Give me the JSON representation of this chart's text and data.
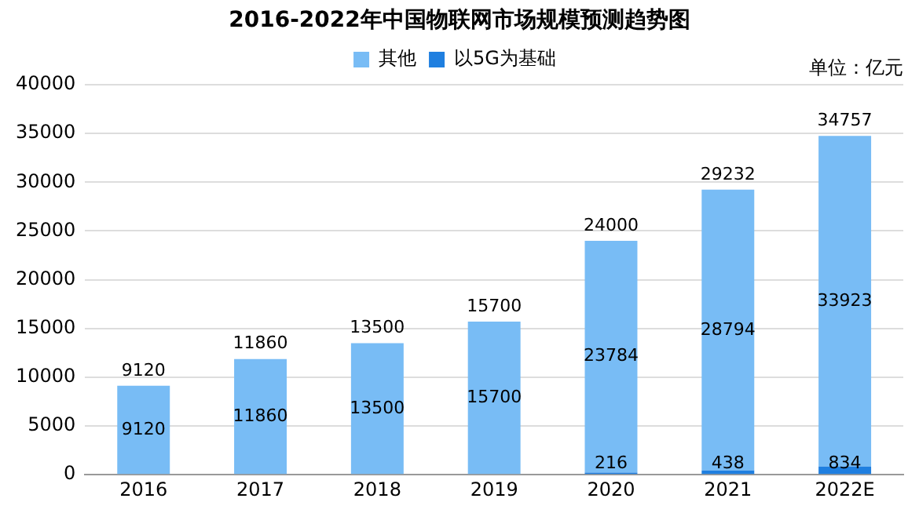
{
  "chart_data": {
    "type": "bar",
    "title": "2016-2022年中国物联网市场规模预测趋势图",
    "categories": [
      "2016",
      "2017",
      "2018",
      "2019",
      "2020",
      "2021",
      "2022E"
    ],
    "series": [
      {
        "name": "以5G为基础",
        "color": "#1f7fe0",
        "values": [
          null,
          null,
          null,
          null,
          216,
          438,
          834
        ]
      },
      {
        "name": "其他",
        "color": "#78bcf5",
        "values": [
          9120,
          11860,
          13500,
          15700,
          23784,
          28794,
          33923
        ]
      }
    ],
    "stacked": true,
    "totals": [
      "9120",
      "11860",
      "13500",
      "15700",
      "24000",
      "29232",
      "34757"
    ],
    "data_labels": true,
    "ylim": [
      0,
      40000
    ],
    "yticks": [
      0,
      5000,
      10000,
      15000,
      20000,
      25000,
      30000,
      35000,
      40000
    ],
    "grid": "y",
    "legend": "top",
    "annotations": [
      "单位：亿元"
    ]
  }
}
